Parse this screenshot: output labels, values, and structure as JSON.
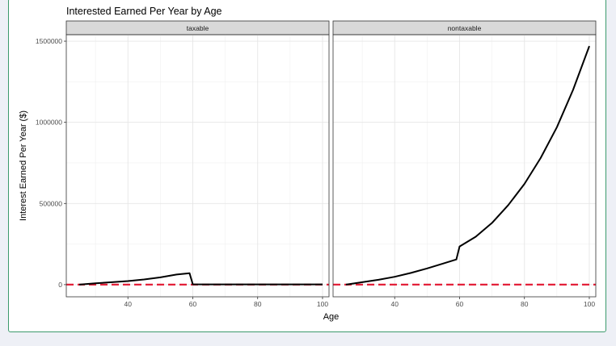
{
  "chart_data": {
    "type": "line",
    "title": "Interested Earned Per Year by Age",
    "xlabel": "Age",
    "ylabel": "Interest Earned Per Year ($)",
    "xlim": [
      21,
      102
    ],
    "ylim": [
      -75000,
      1540000
    ],
    "x_ticks": [
      40,
      60,
      80,
      100
    ],
    "y_ticks": [
      0,
      500000,
      1000000,
      1500000
    ],
    "y_tick_labels": [
      "0",
      "500000",
      "1000000",
      "1500000"
    ],
    "grid": true,
    "reference_line": {
      "y": 0,
      "color": "#e3213a",
      "style": "dashed"
    },
    "line_color": "#000000",
    "panels": [
      {
        "label": "taxable",
        "x": [
          25,
          30,
          35,
          40,
          45,
          50,
          55,
          59,
          60,
          65,
          70,
          75,
          80,
          85,
          90,
          95,
          100
        ],
        "y": [
          0,
          8000,
          15000,
          22000,
          32000,
          45000,
          62000,
          70000,
          2000,
          1500,
          1500,
          1500,
          1500,
          1500,
          1500,
          1500,
          1500
        ]
      },
      {
        "label": "nontaxable",
        "x": [
          25,
          30,
          35,
          40,
          45,
          50,
          55,
          59,
          60,
          65,
          70,
          75,
          80,
          85,
          90,
          95,
          100
        ],
        "y": [
          0,
          15000,
          30000,
          48000,
          72000,
          100000,
          130000,
          155000,
          235000,
          295000,
          380000,
          490000,
          620000,
          780000,
          970000,
          1200000,
          1470000
        ]
      }
    ]
  }
}
